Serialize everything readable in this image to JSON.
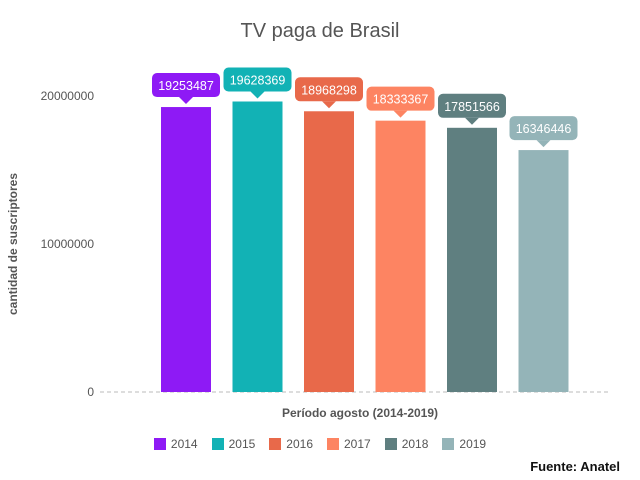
{
  "chart_data": {
    "type": "bar",
    "title": "TV paga de Brasil",
    "xlabel": "Período agosto (2014-2019)",
    "ylabel": "cantidad de suscriptores",
    "ylim": [
      0,
      20000000
    ],
    "yticks": [
      0,
      10000000,
      20000000
    ],
    "ytick_labels": [
      "0",
      "10000000",
      "20000000"
    ],
    "grid": false,
    "legend_position": "bottom",
    "categories": [
      "2014",
      "2015",
      "2016",
      "2017",
      "2018",
      "2019"
    ],
    "values": [
      19253487,
      19628369,
      18968298,
      18333367,
      17851566,
      16346446
    ],
    "data_labels": [
      "19253487",
      "19628369",
      "18968298",
      "18333367",
      "17851566",
      "16346446"
    ],
    "colors": [
      "#8e1af5",
      "#12b2b5",
      "#e8694a",
      "#fd8462",
      "#5f7f80",
      "#94b4b8"
    ]
  },
  "legend": {
    "items": [
      {
        "label": "2014",
        "color": "#8e1af5"
      },
      {
        "label": "2015",
        "color": "#12b2b5"
      },
      {
        "label": "2016",
        "color": "#e8694a"
      },
      {
        "label": "2017",
        "color": "#fd8462"
      },
      {
        "label": "2018",
        "color": "#5f7f80"
      },
      {
        "label": "2019",
        "color": "#94b4b8"
      }
    ]
  },
  "source": "Fuente: Anatel"
}
